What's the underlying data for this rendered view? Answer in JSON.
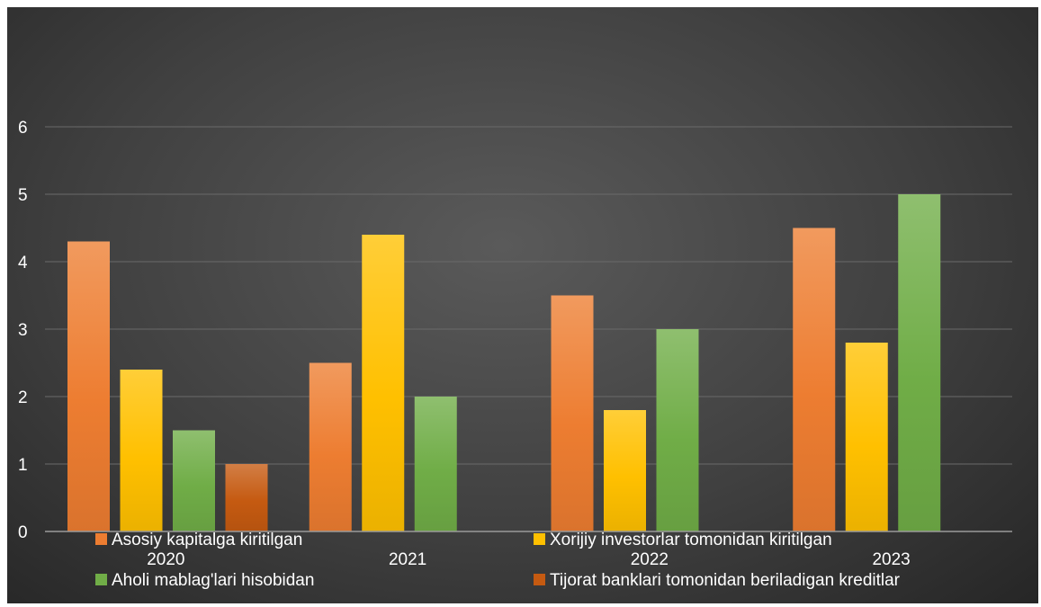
{
  "chart_data": {
    "type": "bar",
    "categories": [
      "2020",
      "2021",
      "2022",
      "2023"
    ],
    "series": [
      {
        "name": "Asosiy kapitalga kiritilgan",
        "color": "#ED7D31",
        "values": [
          4.3,
          2.5,
          3.5,
          4.5
        ]
      },
      {
        "name": "Xorijiy investorlar tomonidan kiritilgan",
        "color": "#FFC000",
        "values": [
          2.4,
          4.4,
          1.8,
          2.8
        ]
      },
      {
        "name": "Aholi mablag'lari hisobidan",
        "color": "#70AD47",
        "values": [
          1.5,
          2.0,
          3.0,
          5.0
        ]
      },
      {
        "name": "Tijorat banklari tomonidan beriladigan kreditlar",
        "color": "#C55A11",
        "values": [
          1.0,
          null,
          null,
          null
        ]
      }
    ],
    "y_ticks": [
      "0",
      "1",
      "2",
      "3",
      "4",
      "5",
      "6"
    ],
    "ylim": [
      0,
      6
    ],
    "grid": true,
    "legend_position": "bottom",
    "title": "",
    "xlabel": "",
    "ylabel": ""
  }
}
